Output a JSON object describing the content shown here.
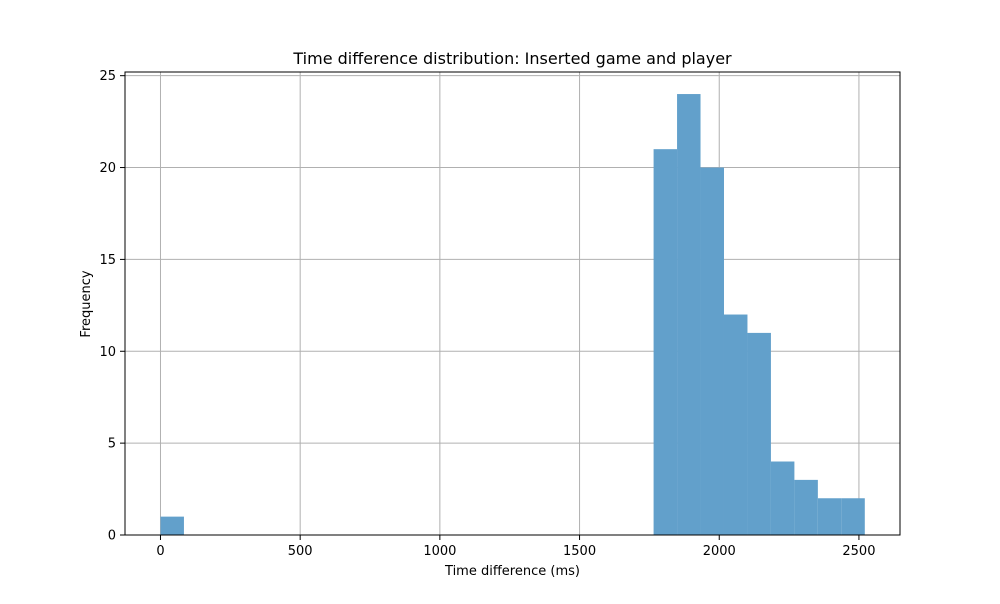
{
  "chart_data": {
    "type": "bar",
    "title": "Time difference distribution: Inserted game and player",
    "xlabel": "Time difference (ms)",
    "ylabel": "Frequency",
    "xlim": [
      -127,
      2647
    ],
    "ylim": [
      0,
      25.2
    ],
    "xticks": [
      0,
      500,
      1000,
      1500,
      2000,
      2500
    ],
    "yticks": [
      0,
      5,
      10,
      15,
      20,
      25
    ],
    "grid": true,
    "bar_color": "#62a0cb",
    "bins": [
      {
        "x0": 0,
        "x1": 84,
        "count": 1
      },
      {
        "x0": 1765,
        "x1": 1849,
        "count": 21
      },
      {
        "x0": 1849,
        "x1": 1933,
        "count": 24
      },
      {
        "x0": 1933,
        "x1": 2017,
        "count": 20
      },
      {
        "x0": 2017,
        "x1": 2101,
        "count": 12
      },
      {
        "x0": 2101,
        "x1": 2185,
        "count": 11
      },
      {
        "x0": 2185,
        "x1": 2269,
        "count": 4
      },
      {
        "x0": 2269,
        "x1": 2353,
        "count": 3
      },
      {
        "x0": 2353,
        "x1": 2437,
        "count": 2
      },
      {
        "x0": 2437,
        "x1": 2521,
        "count": 2
      }
    ]
  }
}
